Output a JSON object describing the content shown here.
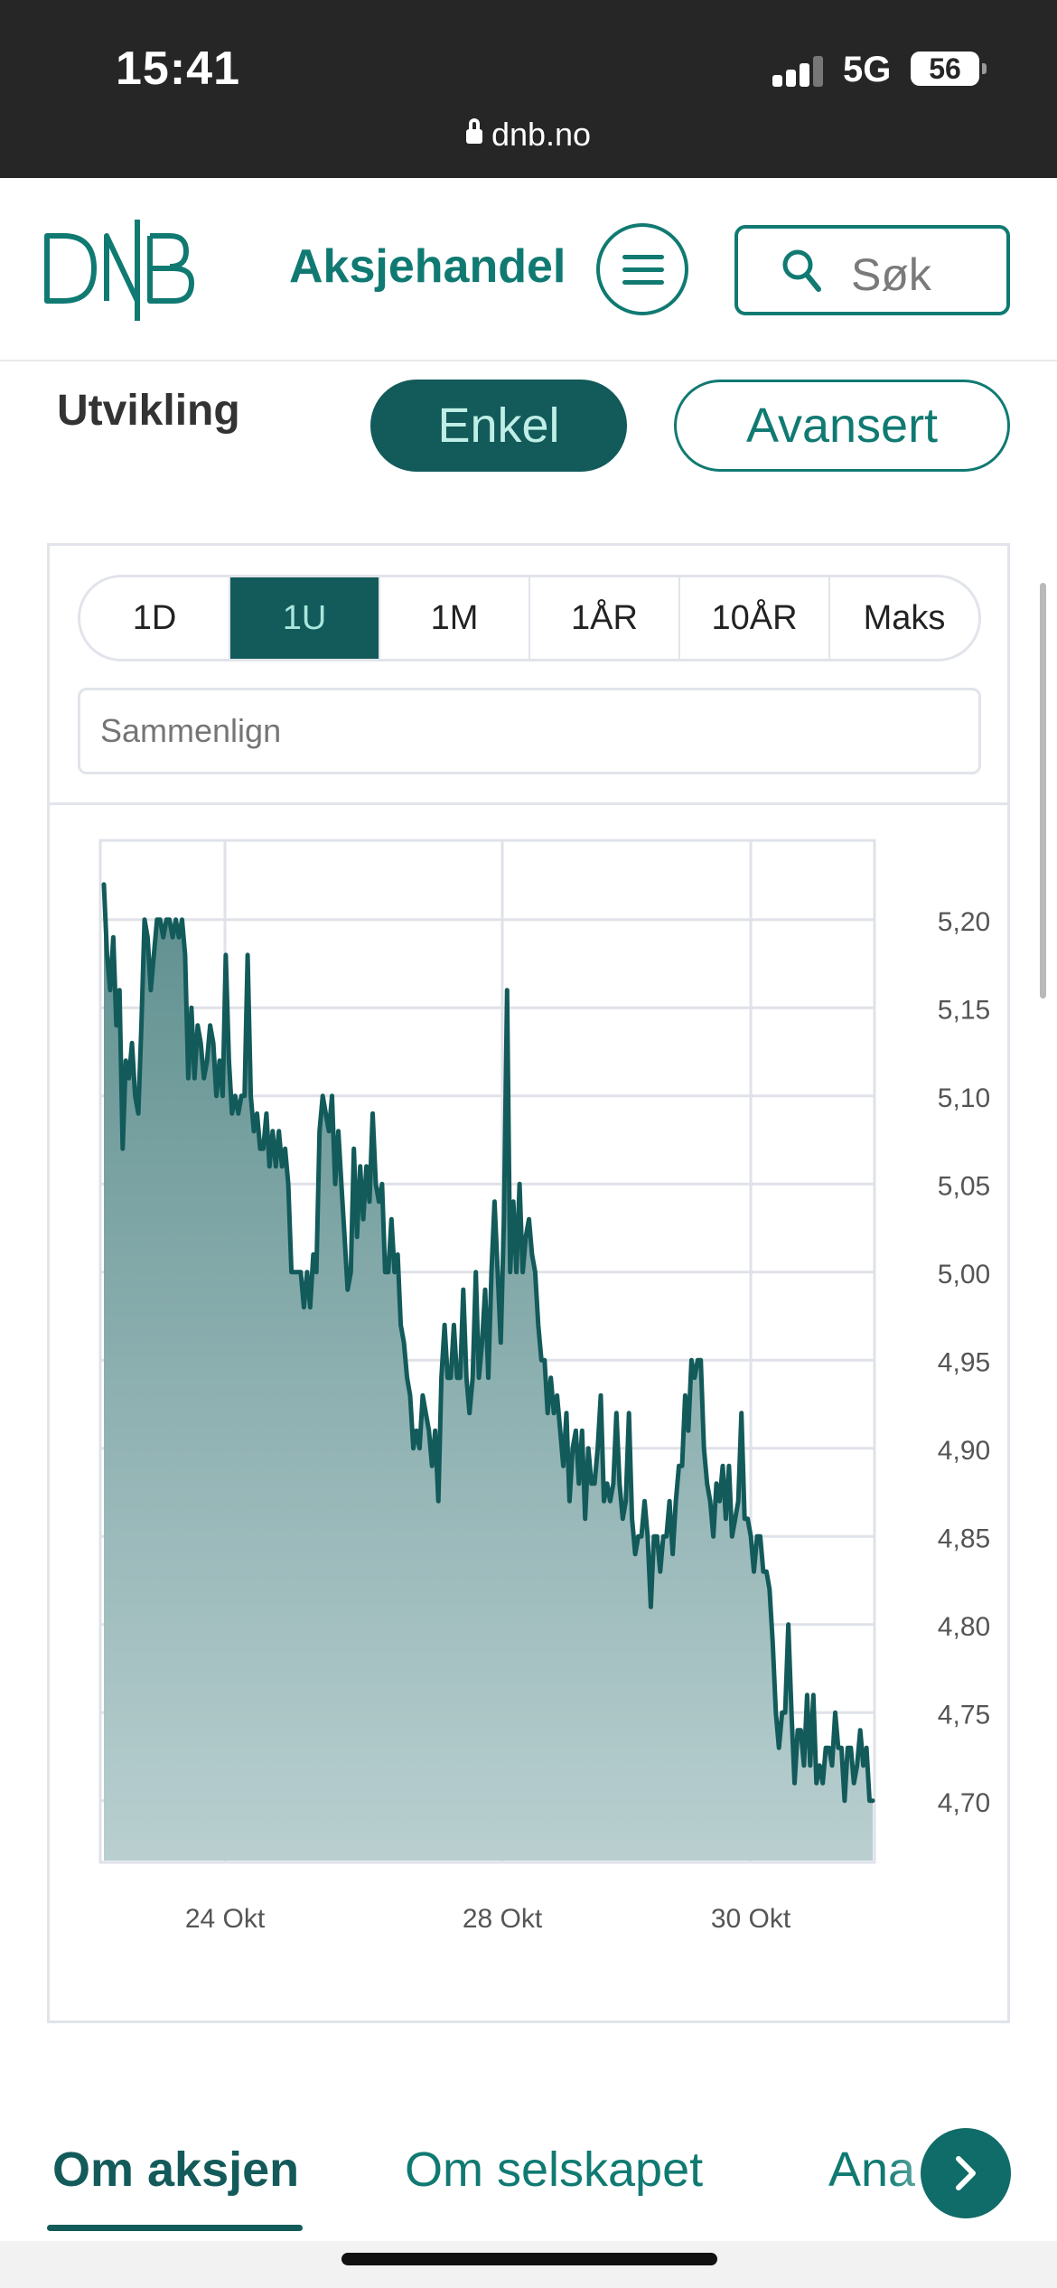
{
  "status_bar": {
    "time": "15:41",
    "network": "5G",
    "battery": "56",
    "url": "dnb.no"
  },
  "header": {
    "logo_text": "DNB",
    "title": "Aksjehandel",
    "search_label": "Søk"
  },
  "development": {
    "label": "Utvikling",
    "mode_simple": "Enkel",
    "mode_advanced": "Avansert",
    "active_mode": "Enkel"
  },
  "range_tabs": {
    "items": [
      "1D",
      "1U",
      "1M",
      "1ÅR",
      "10ÅR",
      "Maks"
    ],
    "active": "1U"
  },
  "compare": {
    "placeholder": "Sammenlign"
  },
  "chart_data": {
    "type": "area",
    "title": "",
    "xlabel": "",
    "ylabel": "",
    "x_ticks": [
      "24 Okt",
      "28 Okt",
      "30 Okt"
    ],
    "y_ticks": [
      "5,20",
      "5,15",
      "5,10",
      "5,05",
      "5,00",
      "4,95",
      "4,90",
      "4,85",
      "4,80",
      "4,75",
      "4,70"
    ],
    "ylim": [
      4.665,
      5.245
    ],
    "grid": true,
    "colors": {
      "line": "#135a5a",
      "fill_top": "#5f8f8f",
      "fill_bottom": "#b9cfd0"
    },
    "series": [
      {
        "values": [
          5.22,
          5.18,
          5.16,
          5.19,
          5.14,
          5.16,
          5.07,
          5.12,
          5.11,
          5.13,
          5.1,
          5.09,
          5.14,
          5.2,
          5.19,
          5.16,
          5.18,
          5.2,
          5.2,
          5.19,
          5.2,
          5.2,
          5.19,
          5.2,
          5.19,
          5.2,
          5.18,
          5.11,
          5.15,
          5.11,
          5.14,
          5.13,
          5.11,
          5.12,
          5.14,
          5.13,
          5.1,
          5.12,
          5.1,
          5.18,
          5.12,
          5.09,
          5.1,
          5.09,
          5.1,
          5.1,
          5.18,
          5.1,
          5.08,
          5.09,
          5.07,
          5.07,
          5.09,
          5.06,
          5.08,
          5.06,
          5.08,
          5.06,
          5.07,
          5.05,
          5.0,
          5.0,
          5.0,
          5.0,
          4.98,
          5.0,
          4.98,
          5.01,
          5.0,
          5.08,
          5.1,
          5.09,
          5.08,
          5.1,
          5.05,
          5.08,
          5.05,
          5.02,
          4.99,
          5.0,
          5.07,
          5.02,
          5.06,
          5.03,
          5.06,
          5.04,
          5.09,
          5.05,
          5.04,
          5.05,
          5.0,
          5.0,
          5.03,
          5.0,
          5.01,
          4.97,
          4.96,
          4.94,
          4.93,
          4.9,
          4.91,
          4.9,
          4.93,
          4.92,
          4.91,
          4.89,
          4.91,
          4.87,
          4.94,
          4.97,
          4.94,
          4.94,
          4.97,
          4.94,
          4.94,
          4.99,
          4.94,
          4.92,
          4.94,
          5.0,
          4.94,
          4.96,
          4.99,
          4.94,
          5.0,
          5.04,
          5.0,
          4.96,
          5.03,
          5.16,
          5.0,
          5.04,
          5.0,
          5.05,
          5.0,
          5.02,
          5.03,
          5.01,
          5.0,
          4.97,
          4.95,
          4.95,
          4.92,
          4.94,
          4.92,
          4.93,
          4.91,
          4.89,
          4.92,
          4.87,
          4.9,
          4.91,
          4.88,
          4.91,
          4.86,
          4.9,
          4.88,
          4.88,
          4.9,
          4.93,
          4.87,
          4.88,
          4.87,
          4.88,
          4.92,
          4.88,
          4.86,
          4.87,
          4.92,
          4.86,
          4.84,
          4.85,
          4.85,
          4.87,
          4.85,
          4.81,
          4.85,
          4.85,
          4.83,
          4.85,
          4.85,
          4.87,
          4.84,
          4.87,
          4.89,
          4.89,
          4.93,
          4.91,
          4.95,
          4.94,
          4.95,
          4.95,
          4.9,
          4.88,
          4.87,
          4.85,
          4.88,
          4.87,
          4.89,
          4.86,
          4.89,
          4.85,
          4.86,
          4.87,
          4.92,
          4.86,
          4.86,
          4.85,
          4.83,
          4.85,
          4.85,
          4.83,
          4.83,
          4.82,
          4.79,
          4.75,
          4.73,
          4.75,
          4.75,
          4.8,
          4.75,
          4.71,
          4.74,
          4.74,
          4.72,
          4.76,
          4.72,
          4.76,
          4.71,
          4.72,
          4.71,
          4.73,
          4.73,
          4.72,
          4.75,
          4.73,
          4.73,
          4.7,
          4.73,
          4.73,
          4.71,
          4.72,
          4.74,
          4.72,
          4.73,
          4.7,
          4.7
        ]
      }
    ]
  },
  "tabs": {
    "items": [
      "Om aksjen",
      "Om selskapet",
      "Ana"
    ],
    "active": "Om aksjen"
  }
}
